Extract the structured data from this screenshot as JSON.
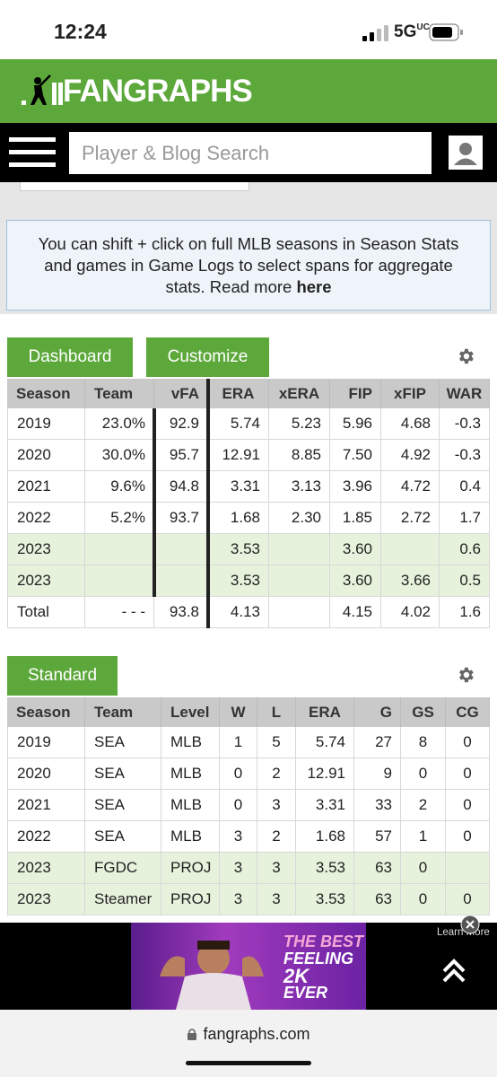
{
  "status_bar": {
    "time": "12:24",
    "network": "5G",
    "network_sub": "UC"
  },
  "header": {
    "logo": "FANGRAPHS",
    "search_placeholder": "Player & Blog Search"
  },
  "notice": {
    "text": "You can shift + click on full MLB seasons in Season Stats and games in Game Logs to select spans for aggregate stats. Read more",
    "link": "here"
  },
  "dashboard": {
    "tabs": [
      "Dashboard",
      "Customize"
    ],
    "columns": [
      "Season",
      "Team",
      "vFA",
      "ERA",
      "xERA",
      "FIP",
      "xFIP",
      "WAR"
    ],
    "rows": [
      [
        "2019",
        "23.0%",
        "92.9",
        "5.74",
        "5.23",
        "5.96",
        "4.68",
        "-0.3"
      ],
      [
        "2020",
        "30.0%",
        "95.7",
        "12.91",
        "8.85",
        "7.50",
        "4.92",
        "-0.3"
      ],
      [
        "2021",
        "9.6%",
        "94.8",
        "3.31",
        "3.13",
        "3.96",
        "4.72",
        "0.4"
      ],
      [
        "2022",
        "5.2%",
        "93.7",
        "1.68",
        "2.30",
        "1.85",
        "2.72",
        "1.7"
      ],
      [
        "2023",
        null,
        null,
        "3.53",
        null,
        "3.60",
        null,
        "0.6"
      ],
      [
        "2023",
        null,
        null,
        "3.53",
        null,
        "3.60",
        "3.66",
        "0.5"
      ],
      [
        "Total",
        "- - -",
        "93.8",
        "4.13",
        null,
        "4.15",
        "4.02",
        "1.6"
      ]
    ],
    "highlight_rows": [
      4,
      5
    ]
  },
  "standard": {
    "tabs": [
      "Standard"
    ],
    "columns": [
      "Season",
      "Team",
      "Level",
      "W",
      "L",
      "ERA",
      "G",
      "GS",
      "CG"
    ],
    "rows": [
      [
        "2019",
        "SEA",
        "MLB",
        "1",
        "5",
        "5.74",
        "27",
        "8",
        "0"
      ],
      [
        "2020",
        "SEA",
        "MLB",
        "0",
        "2",
        "12.91",
        "9",
        "0",
        "0"
      ],
      [
        "2021",
        "SEA",
        "MLB",
        "0",
        "3",
        "3.31",
        "33",
        "2",
        "0"
      ],
      [
        "2022",
        "SEA",
        "MLB",
        "3",
        "2",
        "1.68",
        "57",
        "1",
        "0"
      ],
      [
        "2023",
        "FGDC",
        "PROJ",
        "3",
        "3",
        "3.53",
        "63",
        "0",
        null
      ],
      [
        "2023",
        "Steamer",
        "PROJ",
        "3",
        "3",
        "3.53",
        "63",
        "0",
        "0"
      ]
    ],
    "highlight_rows": [
      4,
      5
    ]
  },
  "ad": {
    "headline": [
      "THE BEST",
      "FEELING",
      "2K",
      "EVER"
    ],
    "learn_more": "Learn More"
  },
  "browser": {
    "url": "fangraphs.com"
  }
}
